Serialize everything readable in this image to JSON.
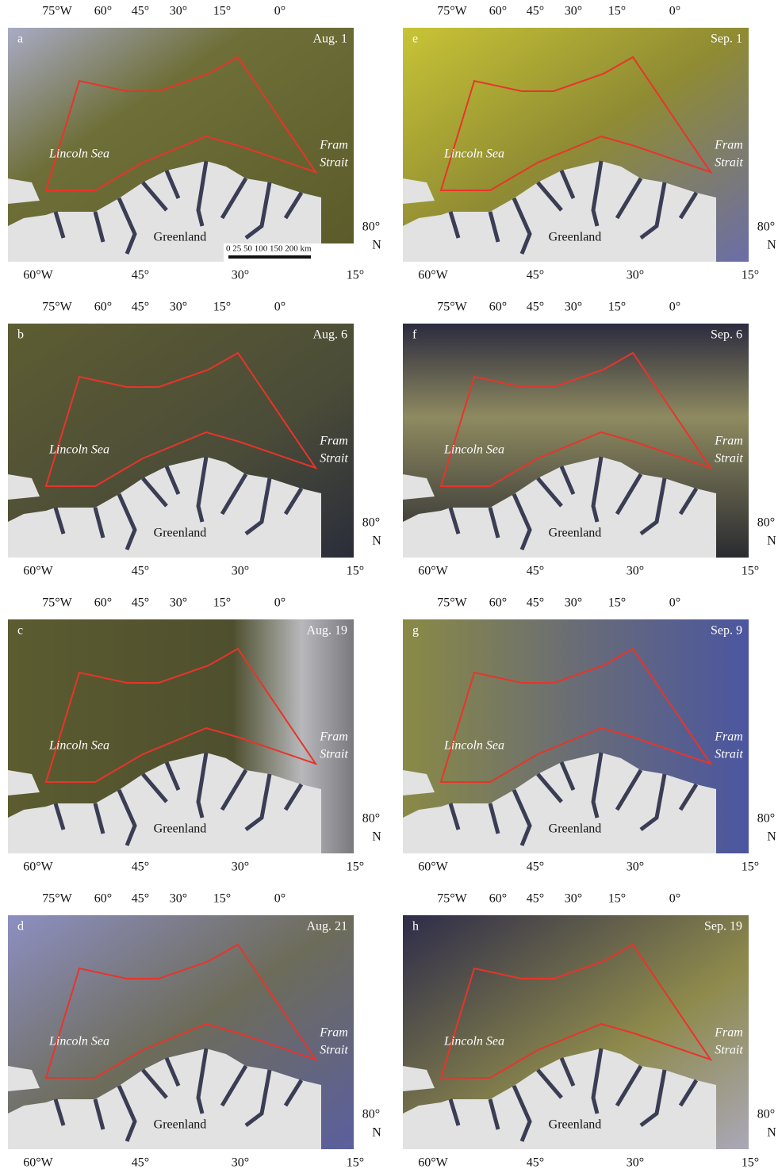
{
  "lon_labels_top": [
    "75°W",
    "60°",
    "45°",
    "30°",
    "15°",
    "0°"
  ],
  "lon_labels_bottom": [
    "60°W",
    "45°",
    "30°",
    "15°"
  ],
  "lat_label": "80°",
  "lat_hemisphere": "N",
  "place_labels": {
    "sea": "Lincoln Sea",
    "strait": [
      "Fram",
      "Strait"
    ],
    "land": "Greenland"
  },
  "scale_bar": "0 25 50 100 150 200 km",
  "panels": [
    {
      "letter": "a",
      "date": "Aug. 1"
    },
    {
      "letter": "b",
      "date": "Aug. 6"
    },
    {
      "letter": "c",
      "date": "Aug. 19"
    },
    {
      "letter": "d",
      "date": "Aug. 21"
    },
    {
      "letter": "e",
      "date": "Sep. 1"
    },
    {
      "letter": "f",
      "date": "Sep. 6"
    },
    {
      "letter": "g",
      "date": "Sep. 9"
    },
    {
      "letter": "h",
      "date": "Sep. 19"
    }
  ]
}
